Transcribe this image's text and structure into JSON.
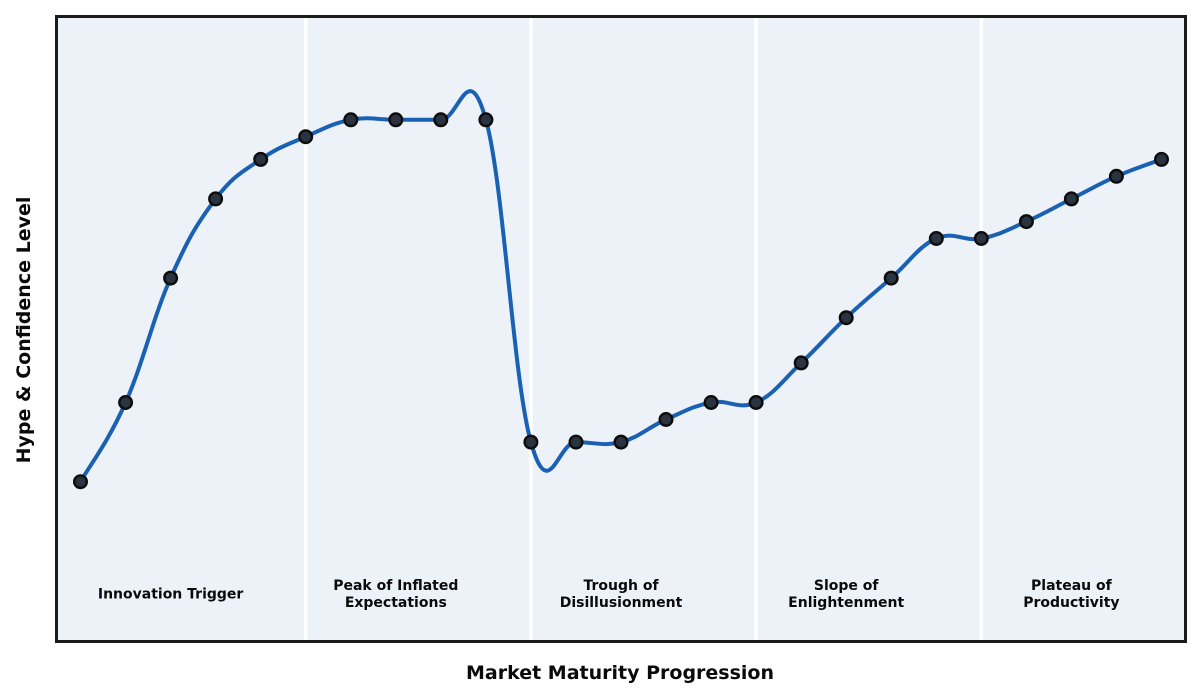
{
  "chart_data": {
    "type": "line",
    "title": "",
    "xlabel": "Market Maturity Progression",
    "ylabel": "Hype & Confidence Level",
    "x": [
      0,
      1,
      2,
      3,
      4,
      5,
      6,
      7,
      8,
      9,
      10,
      11,
      12,
      13,
      14,
      15,
      16,
      17,
      18,
      19,
      20,
      21,
      22,
      23,
      24
    ],
    "values": [
      28,
      42,
      64,
      78,
      85,
      89,
      92,
      92,
      92,
      92,
      35,
      35,
      35,
      39,
      42,
      42,
      49,
      57,
      64,
      71,
      71,
      74,
      78,
      82,
      85
    ],
    "xlim": [
      -0.5,
      24.5
    ],
    "ylim": [
      0,
      110
    ],
    "grid": false,
    "legend": "none",
    "axis_ticks": "none",
    "smoothing": "cubic-spline-through-points",
    "phase_dividers_x": [
      5,
      10,
      15,
      20
    ],
    "phases": [
      {
        "label": "Innovation Trigger",
        "x": 2
      },
      {
        "label": "Peak of Inflated\nExpectations",
        "x": 7
      },
      {
        "label": "Trough of\nDisillusionment",
        "x": 12
      },
      {
        "label": "Slope of\nEnlightenment",
        "x": 17
      },
      {
        "label": "Plateau of\nProductivity",
        "x": 22
      }
    ],
    "colors": {
      "line": "#1a61b4",
      "marker_fill": "#2a3440",
      "marker_edge": "#0c0c0c",
      "plot_bg": "#edf2f8",
      "divider": "#ffffff",
      "border": "#1b1b1b",
      "text": "#0a0a0a",
      "figure_bg": "#ffffff"
    }
  }
}
